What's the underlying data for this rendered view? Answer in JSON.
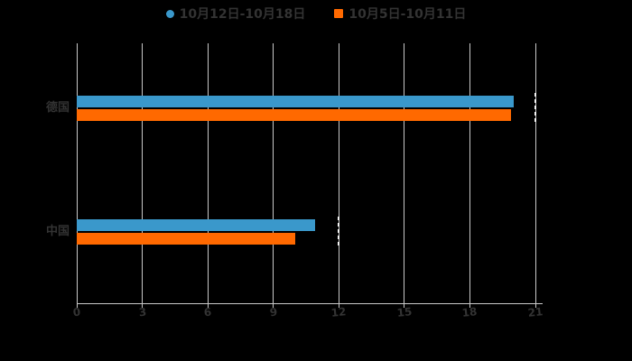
{
  "legend": {
    "items": [
      {
        "label": "10月12日-10月18日",
        "color": "#3a98cb",
        "marker": "circle"
      },
      {
        "label": "10月5日-10月11日",
        "color": "#ff6900",
        "marker": "square"
      }
    ]
  },
  "chart_data": {
    "type": "bar",
    "orientation": "horizontal",
    "title": "",
    "categories": [
      "德国",
      "中国"
    ],
    "series": [
      {
        "name": "10月12日-10月18日",
        "color": "#3a98cb",
        "values": [
          20,
          10.9
        ]
      },
      {
        "name": "10月5日-10月11日",
        "color": "#ff6900",
        "values": [
          19.9,
          10
        ]
      }
    ],
    "xlabel": "",
    "ylabel": "",
    "xlim": [
      0,
      21
    ],
    "x_ticks": [
      0,
      3,
      6,
      9,
      12,
      15,
      18,
      21
    ],
    "grid": true,
    "legend_position": "top-center",
    "background": "#000000",
    "grid_color": "#c9c9c9",
    "text_color": "#333333",
    "dashed_marker_color": "#f2f2f2",
    "dashed_markers": [
      {
        "x_value": 21,
        "category": "德国"
      },
      {
        "x_value": 12,
        "category": "中国"
      }
    ]
  }
}
